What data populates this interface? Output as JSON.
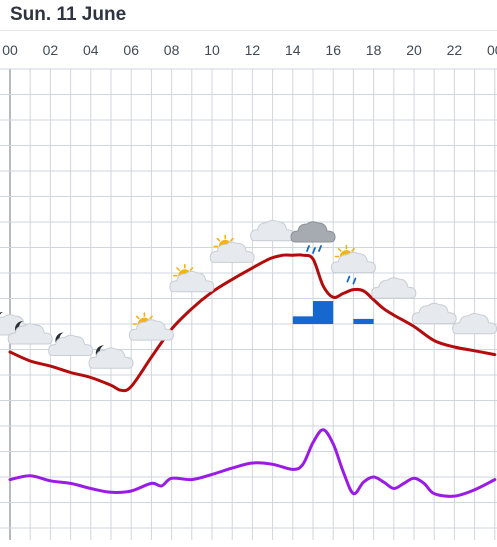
{
  "header": {
    "date": "Sun. 11 June"
  },
  "colors": {
    "grid": "#cfd6dc",
    "temperature": "#b30c0c",
    "wind": "#9b1be6",
    "precipitation": "#1667cf",
    "cloud_light": "#e6e9ed",
    "cloud_dark": "#a6abb2",
    "sun": "#f5b314",
    "moon": "#2b2f36",
    "rain": "#1667cf"
  },
  "chart_data": {
    "type": "line",
    "x_axis": {
      "labels": [
        "00",
        "02",
        "04",
        "06",
        "08",
        "10",
        "12",
        "14",
        "16",
        "18",
        "20",
        "22",
        "00"
      ],
      "range_hours": [
        0,
        24
      ]
    },
    "grid": true,
    "series": [
      {
        "key": "temperature",
        "color": "#b30c0c",
        "unit": "grid rows",
        "x": [
          0,
          1,
          2,
          3,
          4,
          5,
          5.5,
          6,
          7,
          8,
          9,
          10,
          11,
          12,
          12.7,
          13,
          13.5,
          14,
          14.5,
          15,
          15.5,
          16,
          16.5,
          17,
          17.5,
          18,
          18.5,
          19,
          20,
          21,
          22,
          23,
          24
        ],
        "values": [
          6.9,
          6.55,
          6.35,
          6.1,
          5.9,
          5.6,
          5.4,
          5.55,
          6.7,
          7.8,
          8.6,
          9.25,
          9.75,
          10.2,
          10.5,
          10.6,
          10.7,
          10.7,
          10.7,
          10.55,
          9.5,
          9.05,
          9.2,
          9.35,
          9.3,
          8.95,
          8.6,
          8.35,
          7.9,
          7.35,
          7.1,
          6.95,
          6.8
        ]
      },
      {
        "key": "wind",
        "color": "#9b1be6",
        "unit": "grid rows",
        "x": [
          0,
          1,
          2,
          3,
          4,
          5,
          6,
          7,
          7.5,
          8,
          9,
          10,
          11,
          12,
          13,
          14,
          14.5,
          15,
          15.5,
          16,
          16.5,
          17,
          17.5,
          18,
          18.5,
          19,
          19.5,
          20,
          20.5,
          21,
          22,
          23,
          24
        ],
        "values": [
          1.9,
          2.05,
          1.85,
          1.75,
          1.55,
          1.4,
          1.45,
          1.75,
          1.65,
          1.95,
          1.9,
          2.1,
          2.35,
          2.55,
          2.5,
          2.3,
          2.5,
          3.35,
          3.85,
          3.3,
          2.2,
          1.35,
          1.8,
          2.0,
          1.8,
          1.55,
          1.75,
          1.95,
          1.75,
          1.35,
          1.25,
          1.5,
          1.9
        ]
      }
    ],
    "precipitation": {
      "unit": "grid rows",
      "bars": [
        {
          "start_hour": 14,
          "end_hour": 15,
          "value": 0.3
        },
        {
          "start_hour": 15,
          "end_hour": 16,
          "value": 0.9
        },
        {
          "start_hour": 17,
          "end_hour": 18,
          "value": 0.2
        }
      ]
    },
    "weather_icons": [
      {
        "hour": 0,
        "symbol": "partly-cloudy-night"
      },
      {
        "hour": 1,
        "symbol": "partly-cloudy-night"
      },
      {
        "hour": 3,
        "symbol": "partly-cloudy-night"
      },
      {
        "hour": 5,
        "symbol": "partly-cloudy-night"
      },
      {
        "hour": 7,
        "symbol": "partly-cloudy-day"
      },
      {
        "hour": 9,
        "symbol": "partly-cloudy-day"
      },
      {
        "hour": 11,
        "symbol": "partly-cloudy-day"
      },
      {
        "hour": 13,
        "symbol": "cloudy"
      },
      {
        "hour": 15,
        "symbol": "light-rain"
      },
      {
        "hour": 17,
        "symbol": "partly-cloudy-day-rain"
      },
      {
        "hour": 19,
        "symbol": "cloudy"
      },
      {
        "hour": 21,
        "symbol": "cloudy"
      },
      {
        "hour": 23,
        "symbol": "cloudy"
      }
    ]
  }
}
